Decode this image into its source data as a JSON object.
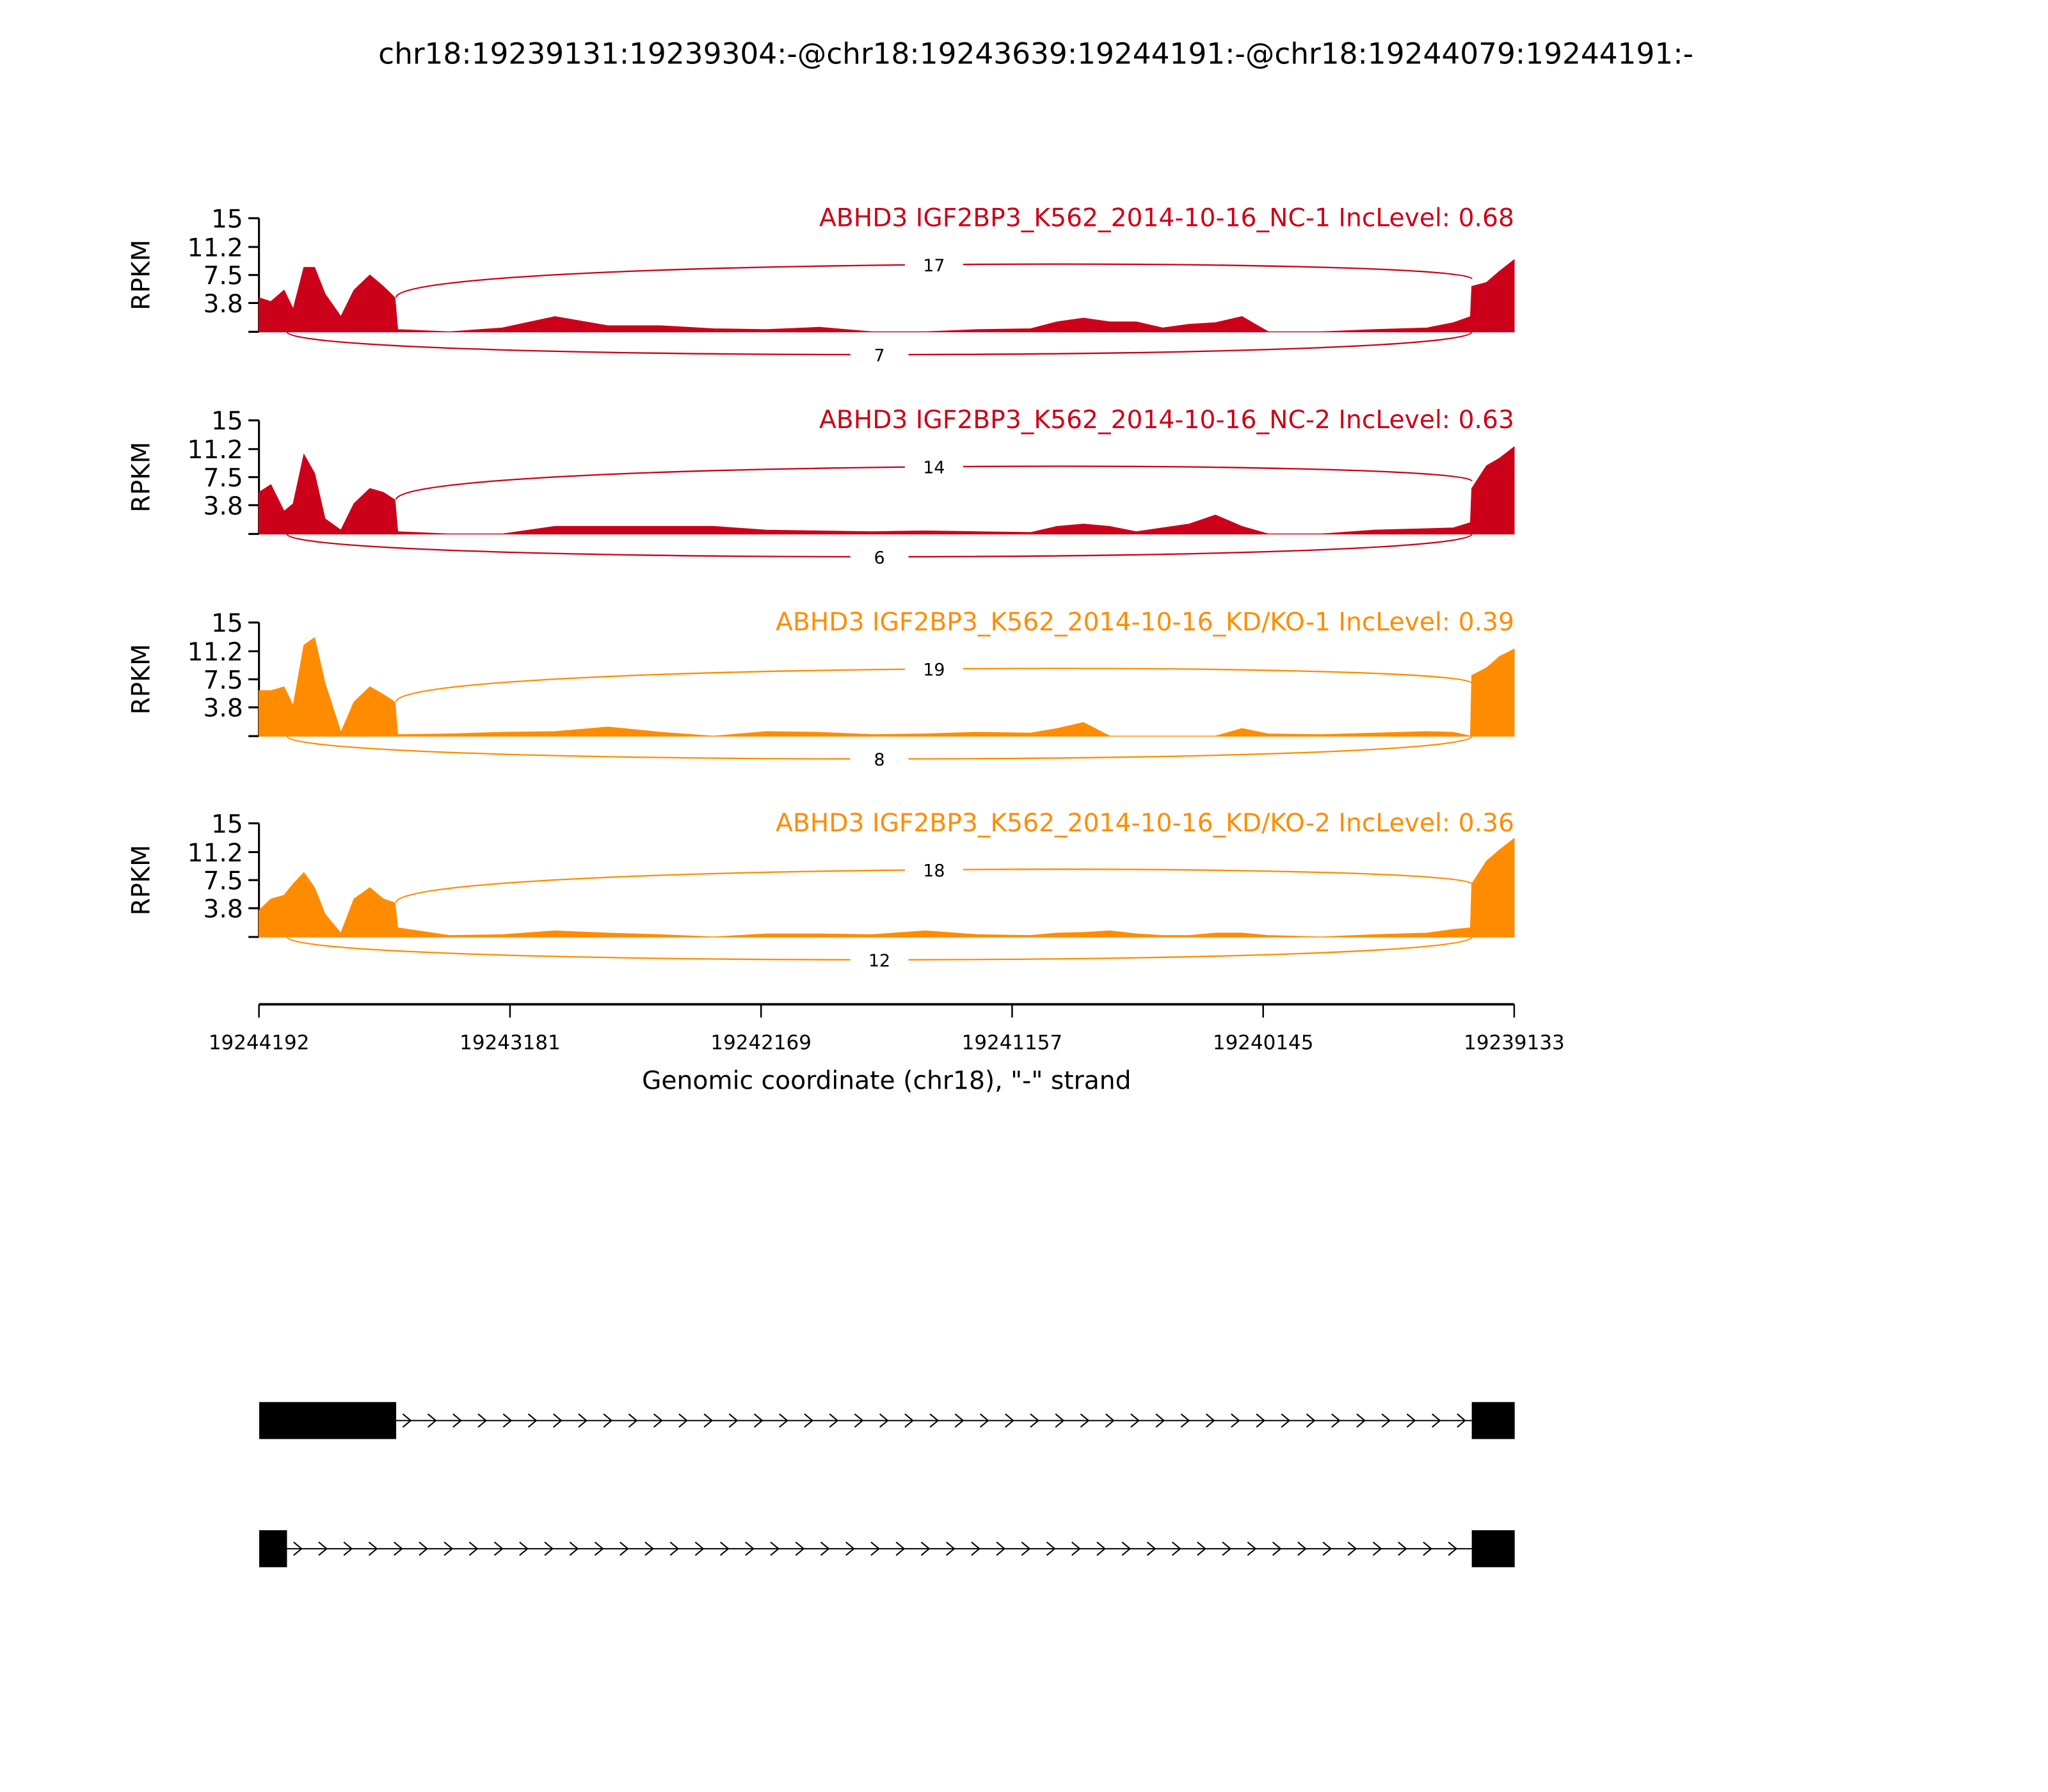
{
  "colors": {
    "NC": "#cc0018",
    "KD": "#ff8c00",
    "gene": "#000000"
  },
  "chart_data": {
    "type": "area",
    "title": "chr18:19239131:19239304:-@chr18:19243639:19244191:-@chr18:19244079:19244191:-",
    "xlabel": "Genomic coordinate (chr18), \"-\" strand",
    "ylabel": "RPKM",
    "xlim": [
      19244192,
      19239133
    ],
    "x_ticks": [
      "19244192",
      "19243181",
      "19242169",
      "19241157",
      "19240145",
      "19239133"
    ],
    "ylim": [
      0,
      15
    ],
    "y_ticks": [
      "15",
      "11.2",
      "7.5",
      "3.8"
    ],
    "positions": [
      19244192,
      19244144,
      19244091,
      19244054,
      19244011,
      19243968,
      19243926,
      19243862,
      19243809,
      19243745,
      19243691,
      19243644,
      19243633,
      19243425,
      19243212,
      19242999,
      19242786,
      19242573,
      19242360,
      19242147,
      19241934,
      19241721,
      19241508,
      19241295,
      19241082,
      19240976,
      19240869,
      19240763,
      19240656,
      19240550,
      19240443,
      19240337,
      19240230,
      19240124,
      19239911,
      19239698,
      19239485,
      19239378,
      19239309,
      19239304,
      19239245,
      19239192,
      19239133
    ],
    "series": [
      {
        "name": "ABHD3 IGF2BP3_K562_2014-10-16_NC-1 IncLevel: 0.68",
        "group": "NC",
        "values": [
          4.5,
          4,
          5.5,
          3,
          8.5,
          8.5,
          5,
          2,
          5.5,
          7.5,
          6,
          4.5,
          0.3,
          0,
          0.5,
          2,
          0.8,
          0.8,
          0.4,
          0.3,
          0.6,
          0,
          0,
          0.3,
          0.4,
          1.3,
          1.8,
          1.3,
          1.3,
          0.5,
          1,
          1.2,
          2,
          0,
          0,
          0.3,
          0.5,
          1.2,
          2,
          6,
          6.5,
          8,
          9.5
        ],
        "junctions": [
          {
            "from": 19243639,
            "to": 19239304,
            "count": "17",
            "side": "above"
          },
          {
            "from": 19244079,
            "to": 19239304,
            "count": "7",
            "side": "below"
          }
        ]
      },
      {
        "name": "ABHD3 IGF2BP3_K562_2014-10-16_NC-2 IncLevel: 0.63",
        "group": "NC",
        "values": [
          5.5,
          6.5,
          3,
          4,
          10.5,
          8,
          2,
          0.5,
          4,
          6,
          5.5,
          4.5,
          0.3,
          0,
          0,
          1,
          1,
          1,
          1,
          0.5,
          0.4,
          0.3,
          0.4,
          0.3,
          0.2,
          1,
          1.3,
          1,
          0.3,
          0.8,
          1.3,
          2.5,
          1,
          0,
          0,
          0.5,
          0.7,
          0.8,
          1.5,
          6,
          9,
          10,
          11.5
        ],
        "junctions": [
          {
            "from": 19243639,
            "to": 19239304,
            "count": "14",
            "side": "above"
          },
          {
            "from": 19244079,
            "to": 19239304,
            "count": "6",
            "side": "below"
          }
        ]
      },
      {
        "name": "ABHD3 IGF2BP3_K562_2014-10-16_KD/KO-1 IncLevel: 0.39",
        "group": "KD",
        "values": [
          6,
          6,
          6.5,
          4,
          12,
          13,
          7,
          0.5,
          4.5,
          6.5,
          5.5,
          4.5,
          0.2,
          0.3,
          0.5,
          0.6,
          1.2,
          0.5,
          0,
          0.6,
          0.5,
          0.2,
          0.3,
          0.5,
          0.4,
          1,
          1.8,
          0,
          0,
          0,
          0,
          0,
          1,
          0.3,
          0.2,
          0.4,
          0.6,
          0.5,
          0,
          8,
          9,
          10.5,
          11.5
        ],
        "junctions": [
          {
            "from": 19243639,
            "to": 19239304,
            "count": "19",
            "side": "above"
          },
          {
            "from": 19244079,
            "to": 19239304,
            "count": "8",
            "side": "below"
          }
        ]
      },
      {
        "name": "ABHD3 IGF2BP3_K562_2014-10-16_KD/KO-2 IncLevel: 0.36",
        "group": "KD",
        "values": [
          3.5,
          5,
          5.5,
          7,
          8.5,
          6.5,
          3,
          0.5,
          5,
          6.5,
          5,
          4.5,
          1.2,
          0.2,
          0.3,
          0.8,
          0.5,
          0.3,
          0,
          0.4,
          0.4,
          0.3,
          0.8,
          0.3,
          0.2,
          0.5,
          0.6,
          0.8,
          0.4,
          0.2,
          0.2,
          0.5,
          0.5,
          0.2,
          0,
          0.3,
          0.5,
          1,
          1.2,
          7,
          10,
          11.5,
          13
        ],
        "junctions": [
          {
            "from": 19243639,
            "to": 19239304,
            "count": "18",
            "side": "above"
          },
          {
            "from": 19244079,
            "to": 19239304,
            "count": "12",
            "side": "below"
          }
        ]
      }
    ],
    "transcripts": [
      {
        "exons": [
          [
            19244191,
            19243639
          ],
          [
            19239304,
            19239131
          ]
        ]
      },
      {
        "exons": [
          [
            19244191,
            19244079
          ],
          [
            19239304,
            19239131
          ]
        ]
      }
    ]
  }
}
